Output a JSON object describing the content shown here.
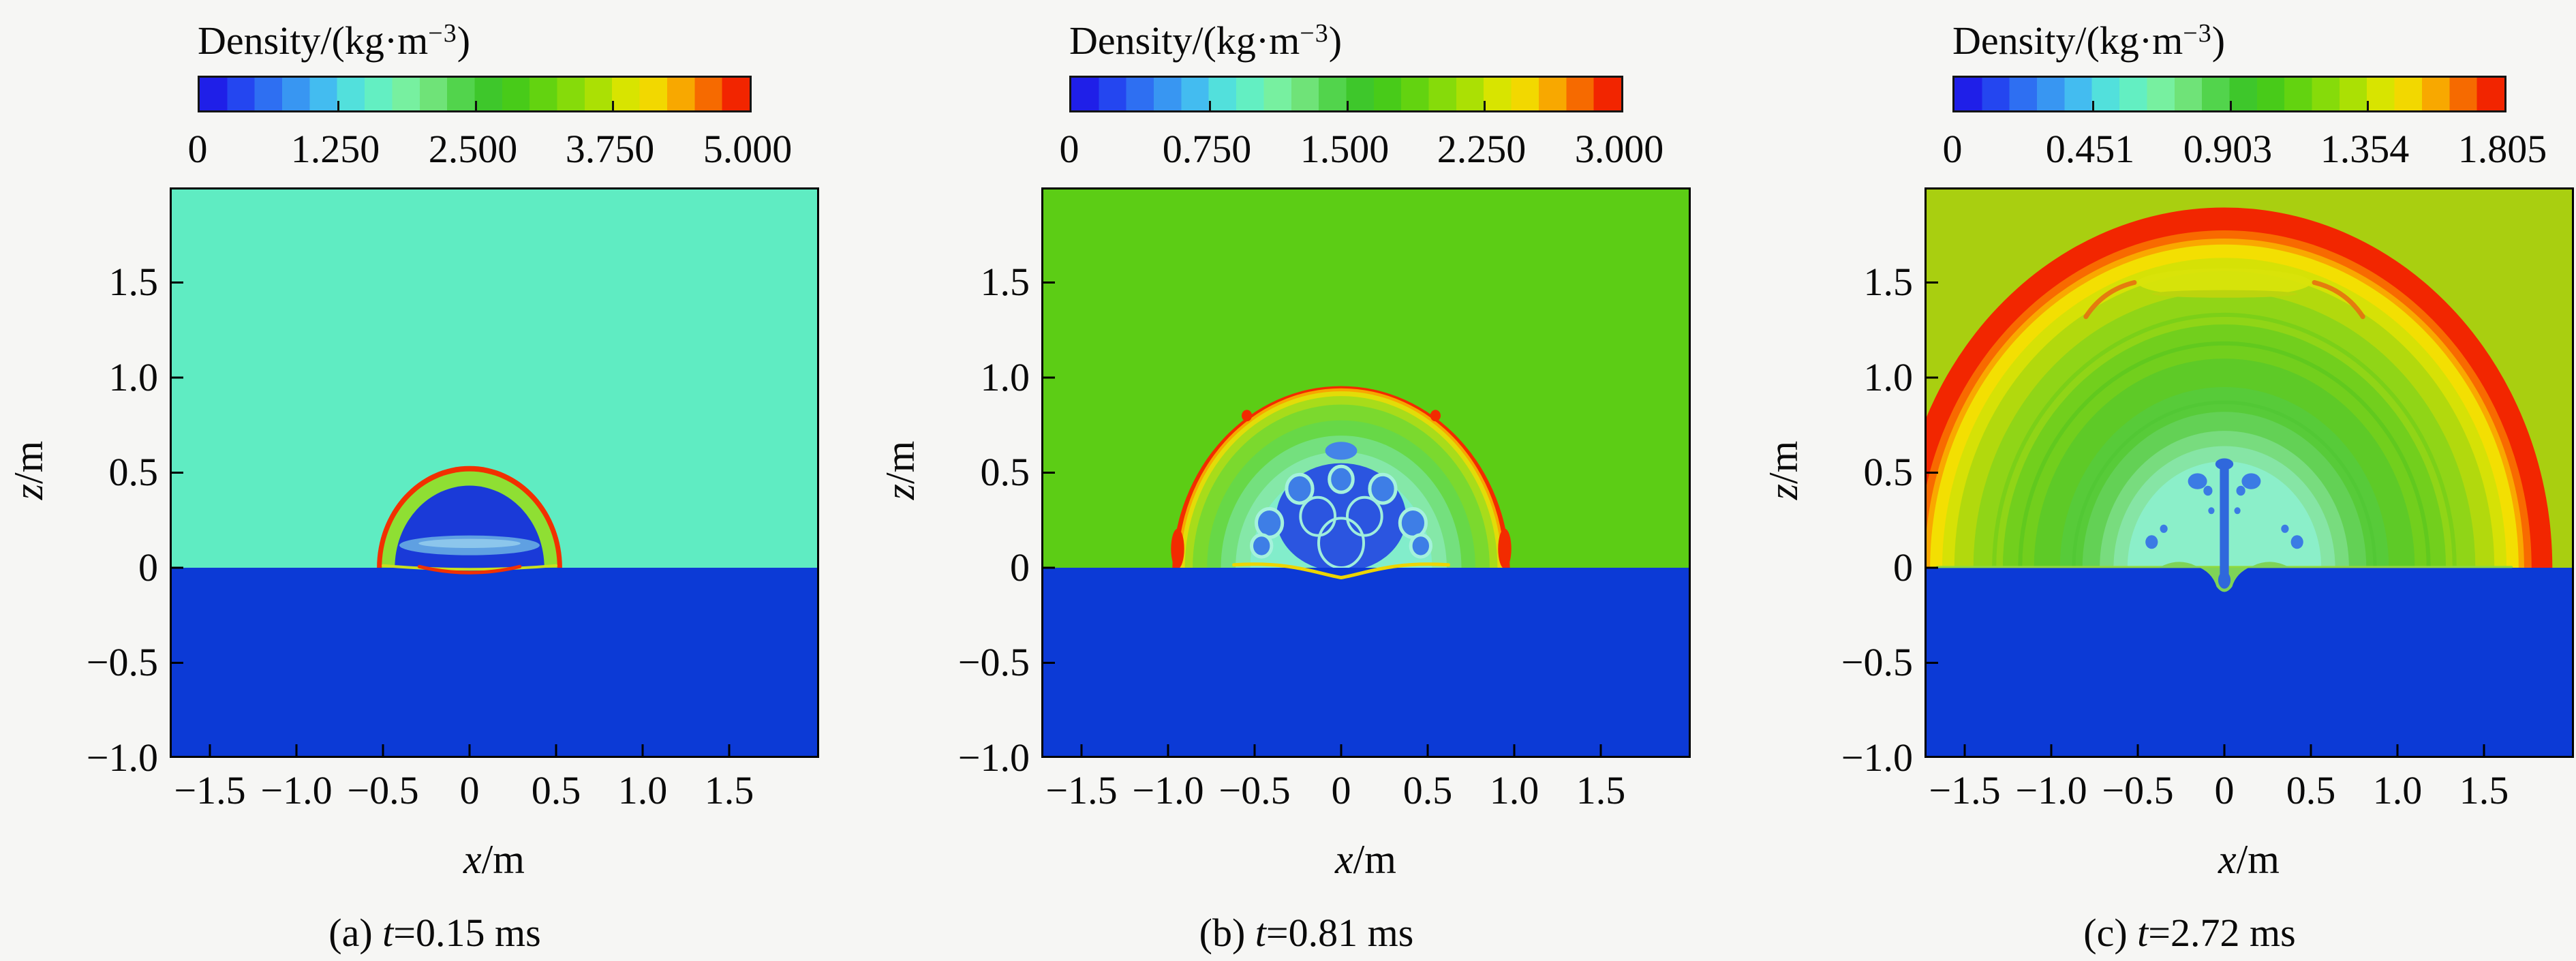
{
  "page_bg": "#f6f6f4",
  "colormap": [
    "#1f1fe8",
    "#2446f0",
    "#2e6ff2",
    "#3896f2",
    "#43bcf0",
    "#52e0dc",
    "#63efc2",
    "#77f0a0",
    "#6fe378",
    "#52d44c",
    "#3ec72b",
    "#48cb19",
    "#63d310",
    "#86db0a",
    "#abe004",
    "#d8e400",
    "#f2d800",
    "#f8a800",
    "#f66a00",
    "#f22500"
  ],
  "axes": {
    "x_label_var": "x",
    "x_label_unit": "/m",
    "y_label_var": "z",
    "y_label_unit": "/m",
    "x_ticks": [
      {
        "v": -1.5,
        "label": "−1.5"
      },
      {
        "v": -1.0,
        "label": "−1.0"
      },
      {
        "v": -0.5,
        "label": "−0.5"
      },
      {
        "v": 0,
        "label": "0"
      },
      {
        "v": 0.5,
        "label": "0.5"
      },
      {
        "v": 1.0,
        "label": "1.0"
      },
      {
        "v": 1.5,
        "label": "1.5"
      }
    ],
    "y_ticks": [
      {
        "v": 1.5,
        "label": "1.5"
      },
      {
        "v": 1.0,
        "label": "1.0"
      },
      {
        "v": 0.5,
        "label": "0.5"
      },
      {
        "v": 0,
        "label": "0"
      },
      {
        "v": -0.5,
        "label": "−0.5"
      },
      {
        "v": -1.0,
        "label": "−1.0"
      }
    ]
  },
  "panels": [
    {
      "id": "a",
      "colorbar": {
        "title_prefix": "Density/(kg·m",
        "title_sup": "−3",
        "title_suffix": ")",
        "ticks": [
          "0",
          "1.250",
          "2.500",
          "3.750",
          "5.000"
        ]
      },
      "caption": {
        "prefix": "(a) ",
        "var": "t",
        "rest": "=0.15 ms"
      },
      "scene": {
        "air": "#5fecc2",
        "water": "#0c3ad6",
        "above": [
          {
            "t": "dome",
            "r": 0.535,
            "f": "#f23000"
          },
          {
            "t": "dome",
            "r": 0.507,
            "f": "#8fdf33"
          },
          {
            "t": "dome",
            "r": 0.432,
            "f": "#1a3ad8"
          },
          {
            "t": "ellipse",
            "x": 0,
            "z": 0.118,
            "rx": 0.405,
            "rz": 0.052,
            "f": "#5fa0e2"
          },
          {
            "t": "ellipse",
            "x": 0,
            "z": 0.128,
            "rx": 0.295,
            "rz": 0.024,
            "f": "#8cc6ec"
          }
        ],
        "post": [
          {
            "t": "path",
            "cmds": [
              "M",
              -0.5,
              0.012,
              "Q",
              0,
              -0.028,
              0.5,
              0.012
            ],
            "stroke": "#c8e020",
            "w": 4
          },
          {
            "t": "path",
            "cmds": [
              "M",
              -0.29,
              0.006,
              "Q",
              0,
              -0.058,
              0.29,
              0.006
            ],
            "stroke": "#f23000",
            "w": 5
          }
        ]
      }
    },
    {
      "id": "b",
      "colorbar": {
        "title_prefix": "Density/(kg·m",
        "title_sup": "−3",
        "title_suffix": ")",
        "ticks": [
          "0",
          "0.750",
          "1.500",
          "2.250",
          "3.000"
        ]
      },
      "caption": {
        "prefix": "(b) ",
        "var": "t",
        "rest": "=0.81 ms"
      },
      "scene": {
        "air": "#5ccd15",
        "water": "#0c3ad6",
        "above": [
          {
            "t": "dome",
            "r": 0.975,
            "f": "#f22b00"
          },
          {
            "t": "dome",
            "r": 0.944,
            "f": "#f7a700"
          },
          {
            "t": "dome",
            "r": 0.928,
            "f": "#e3dc08"
          },
          {
            "t": "dome",
            "r": 0.903,
            "f": "#a8dc1a"
          },
          {
            "t": "dome",
            "r": 0.858,
            "f": "#7bd92e"
          },
          {
            "t": "dome",
            "r": 0.775,
            "f": "#67d847"
          },
          {
            "t": "dome",
            "r": 0.695,
            "f": "#74e07e"
          },
          {
            "t": "dome",
            "r": 0.61,
            "f": "#85e8a8"
          },
          {
            "t": "dome",
            "r": 0.525,
            "f": "#82edcb"
          },
          {
            "t": "ellipse",
            "x": 0.945,
            "z": 0.1,
            "rx": 0.038,
            "rz": 0.105,
            "f": "#f22b00"
          },
          {
            "t": "ellipse",
            "x": -0.945,
            "z": 0.1,
            "rx": 0.038,
            "rz": 0.105,
            "f": "#f22b00"
          },
          {
            "t": "ellipse",
            "x": 0,
            "z": 0.265,
            "rx": 0.375,
            "rz": 0.285,
            "f": "#2b55e0"
          },
          {
            "t": "ellipse",
            "x": 0,
            "z": 0.615,
            "rx": 0.092,
            "rz": 0.047,
            "f": "#4484e8"
          },
          {
            "t": "circle",
            "x": 0.415,
            "z": 0.235,
            "r": 0.075,
            "f": "#3e7ee6",
            "stroke": "#a5f2dc",
            "sw": 5
          },
          {
            "t": "circle",
            "x": -0.415,
            "z": 0.235,
            "r": 0.075,
            "f": "#3e7ee6",
            "stroke": "#a5f2dc",
            "sw": 5
          },
          {
            "t": "circle",
            "x": 0.24,
            "z": 0.415,
            "r": 0.075,
            "f": "#3e7ee6",
            "stroke": "#a5f2dc",
            "sw": 5
          },
          {
            "t": "circle",
            "x": -0.24,
            "z": 0.415,
            "r": 0.075,
            "f": "#3e7ee6",
            "stroke": "#a5f2dc",
            "sw": 5
          },
          {
            "t": "circle",
            "x": 0,
            "z": 0.465,
            "r": 0.068,
            "f": "#3e7ee6",
            "stroke": "#a5f2dc",
            "sw": 5
          },
          {
            "t": "circle",
            "x": 0.46,
            "z": 0.115,
            "r": 0.058,
            "f": "#3e7ee6",
            "stroke": "#a5f2dc",
            "sw": 5
          },
          {
            "t": "circle",
            "x": -0.46,
            "z": 0.115,
            "r": 0.058,
            "f": "#3e7ee6",
            "stroke": "#a5f2dc",
            "sw": 5
          },
          {
            "t": "circle",
            "x": 0.135,
            "z": 0.27,
            "r": 0.1,
            "stroke": "#9feedc",
            "sw": 4
          },
          {
            "t": "circle",
            "x": -0.135,
            "z": 0.27,
            "r": 0.1,
            "stroke": "#9feedc",
            "sw": 4
          },
          {
            "t": "circle",
            "x": 0,
            "z": 0.13,
            "r": 0.13,
            "stroke": "#9feedc",
            "sw": 4
          },
          {
            "t": "circle",
            "x": 0.545,
            "z": 0.8,
            "r": 0.03,
            "f": "#f22b00"
          },
          {
            "t": "circle",
            "x": -0.545,
            "z": 0.8,
            "r": 0.03,
            "f": "#f22b00"
          }
        ],
        "post": [
          {
            "t": "path",
            "cmds": [
              "M",
              -0.62,
              0.015,
              "C",
              -0.3,
              0.035,
              -0.14,
              -0.03,
              0,
              -0.052,
              "C",
              0.14,
              -0.03,
              0.3,
              0.035,
              0.62,
              0.015
            ],
            "stroke": "#edd500",
            "w": 5
          }
        ]
      }
    },
    {
      "id": "c",
      "colorbar": {
        "title_prefix": "Density/(kg·m",
        "title_sup": "−3",
        "title_suffix": ")",
        "ticks": [
          "0",
          "0.451",
          "0.903",
          "1.354",
          "1.805"
        ]
      },
      "caption": {
        "prefix": "(c) ",
        "var": "t",
        "rest": "=2.72 ms"
      },
      "scene": {
        "air": "#a9cf10",
        "water": "#0c3ad6",
        "above": [
          {
            "t": "dome",
            "r": 1.895,
            "f": "#f22600"
          },
          {
            "t": "dome",
            "r": 1.775,
            "f": "#f86a00"
          },
          {
            "t": "dome",
            "r": 1.732,
            "f": "#f9a800"
          },
          {
            "t": "dome",
            "r": 1.7,
            "f": "#f3df02"
          },
          {
            "t": "dome",
            "r": 1.63,
            "f": "#d6e106"
          },
          {
            "t": "dome",
            "r": 1.56,
            "f": "#b2d90d"
          },
          {
            "t": "dome",
            "r": 1.45,
            "f": "#90d517"
          },
          {
            "t": "dome",
            "r": 1.28,
            "f": "#72cf1d"
          },
          {
            "t": "dome",
            "r": 1.1,
            "f": "#5eca27"
          },
          {
            "t": "dome",
            "r": 0.95,
            "f": "#57cb39"
          },
          {
            "t": "dome",
            "r": 0.82,
            "f": "#63d155"
          },
          {
            "t": "dome",
            "r": 0.72,
            "f": "#78dc7e"
          },
          {
            "t": "dome",
            "r": 0.64,
            "f": "#86e5a5"
          },
          {
            "t": "dome",
            "r": 0.56,
            "f": "#8befc9"
          },
          {
            "t": "arc",
            "r": 1.18,
            "stroke": "#54c41f",
            "w": 6,
            "op": 0.55
          },
          {
            "t": "arc",
            "r": 1.33,
            "stroke": "#66cb1a",
            "w": 6,
            "op": 0.5
          },
          {
            "t": "arc",
            "r": 0.87,
            "stroke": "#4ec532",
            "w": 5,
            "op": 0.5
          },
          {
            "t": "ellipse",
            "x": 0,
            "z": 1.5,
            "rx": 0.5,
            "rz": 0.075,
            "f": "#d9e30a",
            "op": 0.9
          },
          {
            "t": "ellipse",
            "x": 0,
            "z": 1.44,
            "rx": 0.42,
            "rz": 0.02,
            "f": "#bcd40e"
          },
          {
            "t": "path",
            "cmds": [
              "M",
              0.52,
              1.5,
              "Q",
              0.7,
              1.46,
              0.8,
              1.32
            ],
            "stroke": "#e86a10",
            "w": 7,
            "op": 0.85
          },
          {
            "t": "path",
            "cmds": [
              "M",
              -0.52,
              1.5,
              "Q",
              -0.7,
              1.46,
              -0.8,
              1.32
            ],
            "stroke": "#e86a10",
            "w": 7,
            "op": 0.85
          },
          {
            "t": "ellipse",
            "x": 0.155,
            "z": 0.455,
            "rx": 0.055,
            "rz": 0.042,
            "f": "#3b7be4"
          },
          {
            "t": "ellipse",
            "x": -0.155,
            "z": 0.455,
            "rx": 0.055,
            "rz": 0.042,
            "f": "#3b7be4"
          },
          {
            "t": "circle",
            "x": 0.095,
            "z": 0.405,
            "r": 0.026,
            "f": "#3b7be4"
          },
          {
            "t": "circle",
            "x": -0.095,
            "z": 0.405,
            "r": 0.026,
            "f": "#3b7be4"
          },
          {
            "t": "circle",
            "x": 0.42,
            "z": 0.135,
            "r": 0.036,
            "f": "#3b7be4"
          },
          {
            "t": "circle",
            "x": -0.42,
            "z": 0.135,
            "r": 0.036,
            "f": "#3b7be4"
          },
          {
            "t": "circle",
            "x": 0.35,
            "z": 0.205,
            "r": 0.022,
            "f": "#3b7be4"
          },
          {
            "t": "circle",
            "x": -0.35,
            "z": 0.205,
            "r": 0.022,
            "f": "#3b7be4"
          },
          {
            "t": "circle",
            "x": 0.075,
            "z": 0.3,
            "r": 0.018,
            "f": "#3b7be4"
          },
          {
            "t": "circle",
            "x": -0.075,
            "z": 0.3,
            "r": 0.018,
            "f": "#3b7be4"
          }
        ],
        "post": [
          {
            "t": "path",
            "cmds": [
              "M",
              -1.66,
              0.004,
              "L",
              1.66,
              0.004
            ],
            "stroke": "#8fd93e",
            "w": 3
          },
          {
            "t": "path",
            "cmds": [
              "M",
              -0.38,
              0.0,
              "Q",
              -0.27,
              0.055,
              -0.17,
              0.012,
              "Q",
              -0.07,
              -0.02,
              -0.045,
              -0.1,
              "Q",
              0,
              -0.155,
              0.045,
              -0.1,
              "Q",
              0.07,
              -0.02,
              0.17,
              0.012,
              "Q",
              0.27,
              0.055,
              0.38,
              0.0,
              "Z"
            ],
            "f": "#7ed457"
          },
          {
            "t": "rect",
            "x": 0,
            "z": 0.545,
            "w": 0.052,
            "h": 0.635,
            "f": "#2f68dc"
          },
          {
            "t": "ellipse",
            "x": 0,
            "z": 0.545,
            "rx": 0.052,
            "rz": 0.03,
            "f": "#2f68dc"
          },
          {
            "t": "ellipse",
            "x": 0,
            "z": -0.065,
            "rx": 0.036,
            "rz": 0.045,
            "f": "#2f68dc"
          }
        ]
      }
    }
  ],
  "chart_data": [
    {
      "type": "heatmap",
      "panel": "(a)",
      "time_label": "t=0.15 ms",
      "colorbar": {
        "label": "Density/(kg·m−3)",
        "min": 0,
        "max": 5.0,
        "tick_values": [
          0,
          1.25,
          2.5,
          3.75,
          5.0
        ]
      },
      "xlabel": "x/m",
      "ylabel": "z/m",
      "xlim": [
        -1.73,
        2.02
      ],
      "ylim": [
        -1.0,
        2.0
      ],
      "x_tick_values": [
        -1.5,
        -1.0,
        -0.5,
        0,
        0.5,
        1.0,
        1.5
      ],
      "y_tick_values": [
        -1.0,
        -0.5,
        0,
        0.5,
        1.0,
        1.5
      ],
      "legend_position": "top-colorbar",
      "grid": false,
      "features": {
        "shock_front_radius_m": 0.53,
        "ambient_air_region": "z>0 cyan",
        "water_region": "z<0 uniform blue",
        "description": "Small hemispherical blast bubble on the water surface: thin red shock rim, green shell, dark-blue low-density interior with a lighter blue horizontal layer near the base."
      }
    },
    {
      "type": "heatmap",
      "panel": "(b)",
      "time_label": "t=0.81 ms",
      "colorbar": {
        "label": "Density/(kg·m−3)",
        "min": 0,
        "max": 3.0,
        "tick_values": [
          0,
          0.75,
          1.5,
          2.25,
          3.0
        ]
      },
      "xlabel": "x/m",
      "ylabel": "z/m",
      "xlim": [
        -1.73,
        2.02
      ],
      "ylim": [
        -1.0,
        2.0
      ],
      "x_tick_values": [
        -1.5,
        -1.0,
        -0.5,
        0,
        0.5,
        1.0,
        1.5
      ],
      "y_tick_values": [
        -1.0,
        -0.5,
        0,
        0.5,
        1.0,
        1.5
      ],
      "legend_position": "top-colorbar",
      "grid": false,
      "features": {
        "shock_front_radius_m": 0.97,
        "ambient_air_region": "z>0 green",
        "water_region": "z<0 uniform blue",
        "description": "Expanded hemispherical shock (red rim with yellow fringe) over green air; cyan mixing zone with blue Rayleigh–Taylor mushroom fingers; wavy yellow contact line at the slightly depressed water surface."
      }
    },
    {
      "type": "heatmap",
      "panel": "(c)",
      "time_label": "t=2.72 ms",
      "colorbar": {
        "label": "Density/(kg·m−3)",
        "min": 0,
        "max": 1.805,
        "tick_values": [
          0,
          0.451,
          0.903,
          1.354,
          1.805
        ]
      },
      "xlabel": "x/m",
      "ylabel": "z/m",
      "xlim": [
        -1.73,
        2.02
      ],
      "ylim": [
        -1.0,
        2.0
      ],
      "x_tick_values": [
        -1.5,
        -1.0,
        -0.5,
        0,
        0.5,
        1.0,
        1.5
      ],
      "y_tick_values": [
        -1.0,
        -0.5,
        0,
        0.5,
        1.0,
        1.5
      ],
      "legend_position": "top-colorbar",
      "grid": false,
      "features": {
        "shock_front_radius_m": 1.88,
        "ambient_air_region": "z>0 yellow-green",
        "water_region": "z<0 uniform blue",
        "description": "Large hemispherical blast wave: thick red shock band with yellow inner layer, concentric green rarefaction rings, pale cyan core containing a vertical blue water jet/spike and small mushroom blobs; cratered water surface at the origin."
      }
    }
  ]
}
